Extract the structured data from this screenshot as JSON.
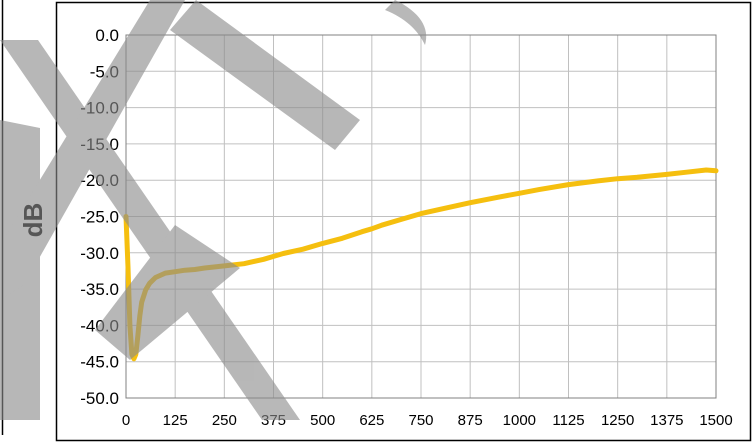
{
  "chart_data": {
    "type": "line",
    "title": "",
    "xlabel": "",
    "ylabel": "dB",
    "xlim": [
      0,
      1500
    ],
    "ylim": [
      -50,
      0
    ],
    "x_ticks": [
      "0",
      "125",
      "250",
      "375",
      "500",
      "625",
      "750",
      "875",
      "1000",
      "1125",
      "1250",
      "1375",
      "1500"
    ],
    "y_ticks": [
      "0.0",
      "-5.0",
      "-10.0",
      "-15.0",
      "-20.0",
      "-25.0",
      "-30.0",
      "-35.0",
      "-40.0",
      "-45.0",
      "-50.0"
    ],
    "grid": true,
    "legend": "none",
    "colors": {
      "series": "#f5bf0f",
      "grid": "#c0c0c0",
      "frame": "#000000",
      "watermark": "#8c8c8c"
    },
    "series": [
      {
        "x": [
          0,
          5,
          10,
          15,
          20,
          25,
          30,
          35,
          40,
          50,
          60,
          75,
          100,
          125,
          150,
          175,
          200,
          250,
          300,
          350,
          375,
          400,
          450,
          500,
          550,
          600,
          625,
          650,
          700,
          750,
          800,
          875,
          950,
          1000,
          1050,
          1125,
          1200,
          1250,
          1300,
          1375,
          1425,
          1475,
          1500
        ],
        "values": [
          -25.0,
          -32.0,
          -40.0,
          -44.0,
          -44.6,
          -44.0,
          -41.5,
          -38.7,
          -36.8,
          -35.1,
          -34.2,
          -33.4,
          -32.8,
          -32.6,
          -32.4,
          -32.3,
          -32.1,
          -31.8,
          -31.5,
          -30.9,
          -30.5,
          -30.1,
          -29.5,
          -28.7,
          -28.0,
          -27.1,
          -26.7,
          -26.2,
          -25.4,
          -24.6,
          -24.0,
          -23.1,
          -22.3,
          -21.8,
          -21.3,
          -20.6,
          -20.1,
          -19.8,
          -19.6,
          -19.2,
          -18.9,
          -18.6,
          -18.7
        ]
      }
    ]
  }
}
